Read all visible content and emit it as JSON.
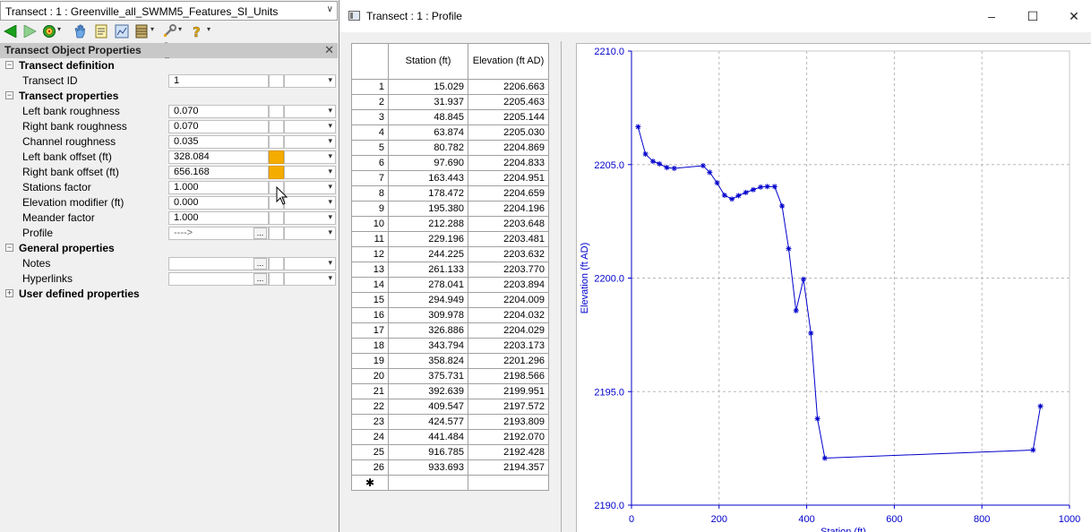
{
  "object_selector": {
    "value": "Transect : 1 : Greenville_all_SWMM5_Features_SI_Units"
  },
  "toolbar": {
    "icons": [
      "back-arrow-icon",
      "forward-arrow-icon",
      "target-icon",
      "hand-icon",
      "notes-icon",
      "image-icon",
      "stack-icon",
      "wrench-icon",
      "help-icon"
    ]
  },
  "panel": {
    "title": "Transect Object Properties",
    "categories": {
      "definition": "Transect definition",
      "properties": "Transect properties",
      "general": "General properties",
      "user": "User defined properties"
    },
    "rows": {
      "transect_id": {
        "label": "Transect ID",
        "value": "1"
      },
      "left_bank_roughness": {
        "label": "Left bank roughness",
        "value": "0.070"
      },
      "right_bank_roughness": {
        "label": "Right bank roughness",
        "value": "0.070"
      },
      "channel_roughness": {
        "label": "Channel roughness",
        "value": "0.035"
      },
      "left_bank_offset": {
        "label": "Left bank offset (ft)",
        "value": "328.084"
      },
      "right_bank_offset": {
        "label": "Right bank offset (ft)",
        "value": "656.168"
      },
      "stations_factor": {
        "label": "Stations factor",
        "value": "1.000"
      },
      "elevation_modifier": {
        "label": "Elevation modifier (ft)",
        "value": "0.000"
      },
      "meander_factor": {
        "label": "Meander factor",
        "value": "1.000"
      },
      "profile": {
        "label": "Profile",
        "value": "---->"
      },
      "notes": {
        "label": "Notes",
        "value": ""
      },
      "hyperlinks": {
        "label": "Hyperlinks",
        "value": ""
      }
    },
    "ellipsis": "...",
    "colors": {
      "highlight": "#f5ac00"
    }
  },
  "window": {
    "title": "Transect : 1 : Profile",
    "buttons": {
      "minimize": "–",
      "maximize": "☐",
      "close": "✕"
    }
  },
  "table": {
    "headers": [
      "Station (ft)",
      "Elevation (ft AD)"
    ],
    "new_row_marker": "✱",
    "rows": [
      [
        "1",
        "15.029",
        "2206.663"
      ],
      [
        "2",
        "31.937",
        "2205.463"
      ],
      [
        "3",
        "48.845",
        "2205.144"
      ],
      [
        "4",
        "63.874",
        "2205.030"
      ],
      [
        "5",
        "80.782",
        "2204.869"
      ],
      [
        "6",
        "97.690",
        "2204.833"
      ],
      [
        "7",
        "163.443",
        "2204.951"
      ],
      [
        "8",
        "178.472",
        "2204.659"
      ],
      [
        "9",
        "195.380",
        "2204.196"
      ],
      [
        "10",
        "212.288",
        "2203.648"
      ],
      [
        "11",
        "229.196",
        "2203.481"
      ],
      [
        "12",
        "244.225",
        "2203.632"
      ],
      [
        "13",
        "261.133",
        "2203.770"
      ],
      [
        "14",
        "278.041",
        "2203.894"
      ],
      [
        "15",
        "294.949",
        "2204.009"
      ],
      [
        "16",
        "309.978",
        "2204.032"
      ],
      [
        "17",
        "326.886",
        "2204.029"
      ],
      [
        "18",
        "343.794",
        "2203.173"
      ],
      [
        "19",
        "358.824",
        "2201.296"
      ],
      [
        "20",
        "375.731",
        "2198.566"
      ],
      [
        "21",
        "392.639",
        "2199.951"
      ],
      [
        "22",
        "409.547",
        "2197.572"
      ],
      [
        "23",
        "424.577",
        "2193.809"
      ],
      [
        "24",
        "441.484",
        "2192.070"
      ],
      [
        "25",
        "916.785",
        "2192.428"
      ],
      [
        "26",
        "933.693",
        "2194.357"
      ]
    ]
  },
  "chart_data": {
    "type": "line",
    "title": "",
    "xlabel": "Station (ft)",
    "ylabel": "Elevation (ft AD)",
    "xlim": [
      0,
      1000
    ],
    "ylim": [
      2190,
      2210
    ],
    "x_ticks": [
      "0",
      "200",
      "400",
      "600",
      "800",
      "1000"
    ],
    "y_ticks": [
      "2190.0",
      "2195.0",
      "2200.0",
      "2205.0",
      "2210.0"
    ],
    "grid": true,
    "line_color": "#0000cc",
    "series": [
      {
        "x": [
          15.029,
          31.937,
          48.845,
          63.874,
          80.782,
          97.69,
          163.443,
          178.472,
          195.38,
          212.288,
          229.196,
          244.225,
          261.133,
          278.041,
          294.949,
          309.978,
          326.886,
          343.794,
          358.824,
          375.731,
          392.639,
          409.547,
          424.577,
          441.484,
          916.785,
          933.693
        ],
        "y": [
          2206.663,
          2205.463,
          2205.144,
          2205.03,
          2204.869,
          2204.833,
          2204.951,
          2204.659,
          2204.196,
          2203.648,
          2203.481,
          2203.632,
          2203.77,
          2203.894,
          2204.009,
          2204.032,
          2204.029,
          2203.173,
          2201.296,
          2198.566,
          2199.951,
          2197.572,
          2193.809,
          2192.07,
          2192.428,
          2194.357
        ]
      }
    ]
  }
}
